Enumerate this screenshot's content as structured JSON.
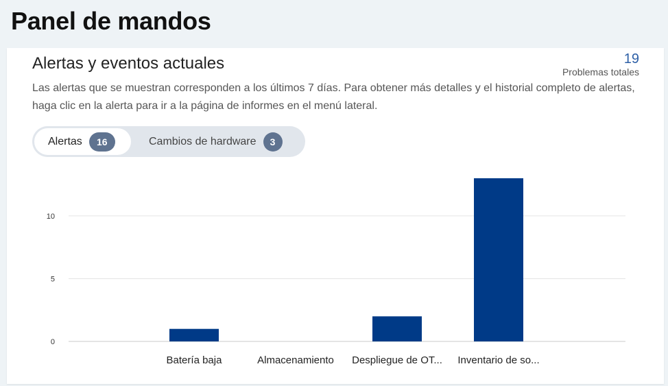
{
  "header": {
    "title": "Panel de mandos"
  },
  "card": {
    "title": "Alertas y eventos actuales",
    "total_count": "19",
    "total_label": "Problemas totales",
    "description": "Las alertas que se muestran corresponden a los últimos 7 días. Para obtener más detalles y el historial completo de alertas, haga clic en la alerta para ir a la página de informes en el menú lateral."
  },
  "tabs": [
    {
      "label": "Alertas",
      "count": "16",
      "active": true
    },
    {
      "label": "Cambios de hardware",
      "count": "3",
      "active": false
    }
  ],
  "colors": {
    "bar": "#003a87",
    "badge": "#5f7390",
    "accent": "#2d5fa6"
  },
  "chart_data": {
    "type": "bar",
    "categories": [
      "Batería baja",
      "Almacenamiento",
      "Despliegue de OT...",
      "Inventario de so..."
    ],
    "values": [
      1,
      0,
      2,
      13
    ],
    "ylim": [
      0,
      13
    ],
    "yticks": [
      0,
      5,
      10
    ],
    "grid": true
  }
}
